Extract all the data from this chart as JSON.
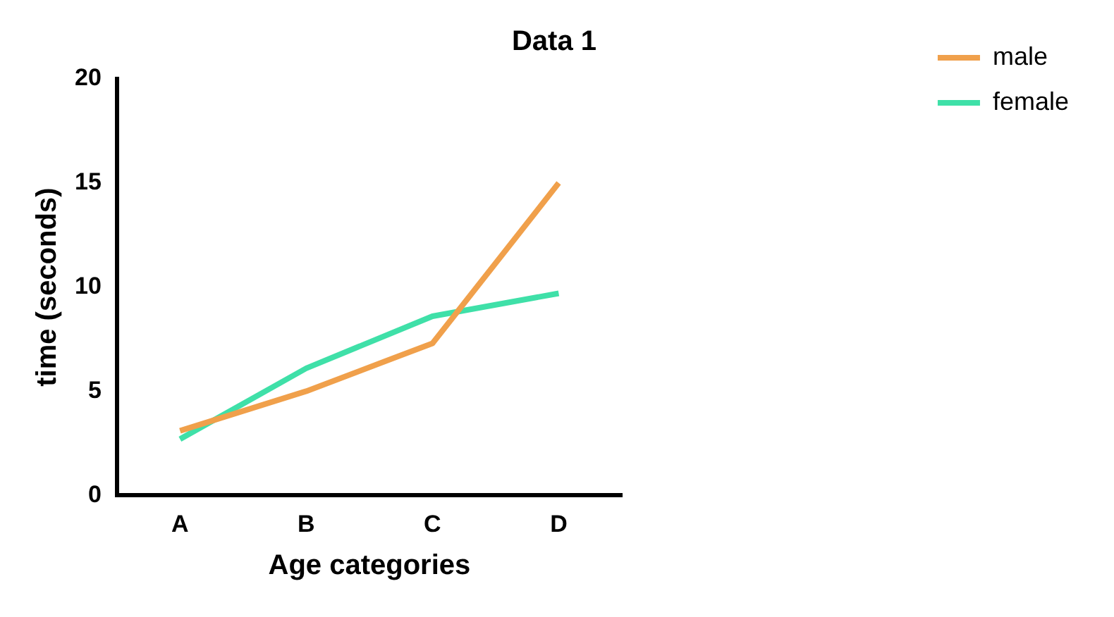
{
  "chart_data": {
    "type": "line",
    "title": "Data 1",
    "xlabel": "Age categories",
    "ylabel": "time (seconds)",
    "categories": [
      "A",
      "B",
      "C",
      "D"
    ],
    "series": [
      {
        "name": "male",
        "color": "#f0a04b",
        "values": [
          3.1,
          5.0,
          7.3,
          15.0
        ]
      },
      {
        "name": "female",
        "color": "#3fe0a8",
        "values": [
          2.7,
          6.1,
          8.6,
          9.7
        ]
      }
    ],
    "ylim": [
      0,
      20
    ],
    "yticks": [
      0,
      5,
      10,
      15,
      20
    ],
    "grid": false,
    "legend": "top right",
    "marker": "none",
    "line_style": "solid"
  }
}
